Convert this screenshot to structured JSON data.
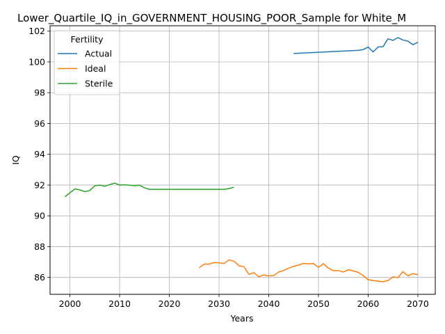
{
  "chart_data": {
    "type": "line",
    "title": "Lower_Quartile_IQ_in_GOVERNMENT_HOUSING_POOR_Sample for White_M",
    "xlabel": "Years",
    "ylabel": "IQ",
    "xlim": [
      1996,
      2073.5
    ],
    "ylim": [
      84.9,
      102.35
    ],
    "xticks": [
      2000,
      2010,
      2020,
      2030,
      2040,
      2050,
      2060,
      2070
    ],
    "yticks": [
      86,
      88,
      90,
      92,
      94,
      96,
      98,
      100,
      102
    ],
    "grid": true,
    "legend": {
      "title": "Fertility",
      "placement": "upper-left"
    },
    "series": [
      {
        "name": "Actual",
        "color": "#1f77b4",
        "x": [
          2045,
          2058,
          2059,
          2060,
          2061,
          2062,
          2063,
          2064,
          2065,
          2066,
          2067,
          2068,
          2069,
          2070
        ],
        "y": [
          100.55,
          100.75,
          100.8,
          100.97,
          100.65,
          100.97,
          100.99,
          101.5,
          101.4,
          101.58,
          101.42,
          101.35,
          101.12,
          101.28
        ]
      },
      {
        "name": "Ideal",
        "color": "#ff7f0e",
        "x": [
          2026,
          2027,
          2028,
          2029,
          2030,
          2031,
          2032,
          2033,
          2034,
          2035,
          2036,
          2037,
          2038,
          2039,
          2040,
          2041,
          2042,
          2043,
          2044,
          2045,
          2046,
          2047,
          2048,
          2049,
          2050,
          2051,
          2052,
          2053,
          2054,
          2055,
          2056,
          2057,
          2058,
          2059,
          2060,
          2061,
          2062,
          2063,
          2064,
          2065,
          2066,
          2067,
          2068,
          2069,
          2070
        ],
        "y": [
          86.62,
          86.86,
          86.86,
          86.97,
          86.95,
          86.9,
          87.14,
          87.05,
          86.76,
          86.7,
          86.2,
          86.31,
          86.04,
          86.16,
          86.1,
          86.12,
          86.35,
          86.45,
          86.6,
          86.72,
          86.8,
          86.91,
          86.88,
          86.9,
          86.65,
          86.89,
          86.6,
          86.44,
          86.44,
          86.35,
          86.5,
          86.42,
          86.33,
          86.12,
          85.85,
          85.8,
          85.76,
          85.72,
          85.8,
          86.04,
          85.98,
          86.38,
          86.1,
          86.25,
          86.17
        ]
      },
      {
        "name": "Sterile",
        "color": "#2ca02c",
        "x": [
          1999,
          2000,
          2001,
          2002,
          2003,
          2004,
          2005,
          2006,
          2007,
          2008,
          2009,
          2010,
          2011,
          2012,
          2013,
          2014,
          2015,
          2016,
          2017,
          2018,
          2019,
          2020,
          2021,
          2022,
          2023,
          2024,
          2025,
          2026,
          2027,
          2028,
          2029,
          2030,
          2031,
          2032,
          2033
        ],
        "y": [
          91.24,
          91.5,
          91.75,
          91.68,
          91.57,
          91.65,
          91.95,
          92.0,
          91.92,
          92.03,
          92.13,
          92.0,
          92.02,
          91.99,
          91.95,
          91.99,
          91.82,
          91.72,
          91.72,
          91.72,
          91.72,
          91.72,
          91.72,
          91.72,
          91.72,
          91.72,
          91.72,
          91.72,
          91.72,
          91.72,
          91.72,
          91.72,
          91.72,
          91.77,
          91.86
        ]
      }
    ]
  }
}
